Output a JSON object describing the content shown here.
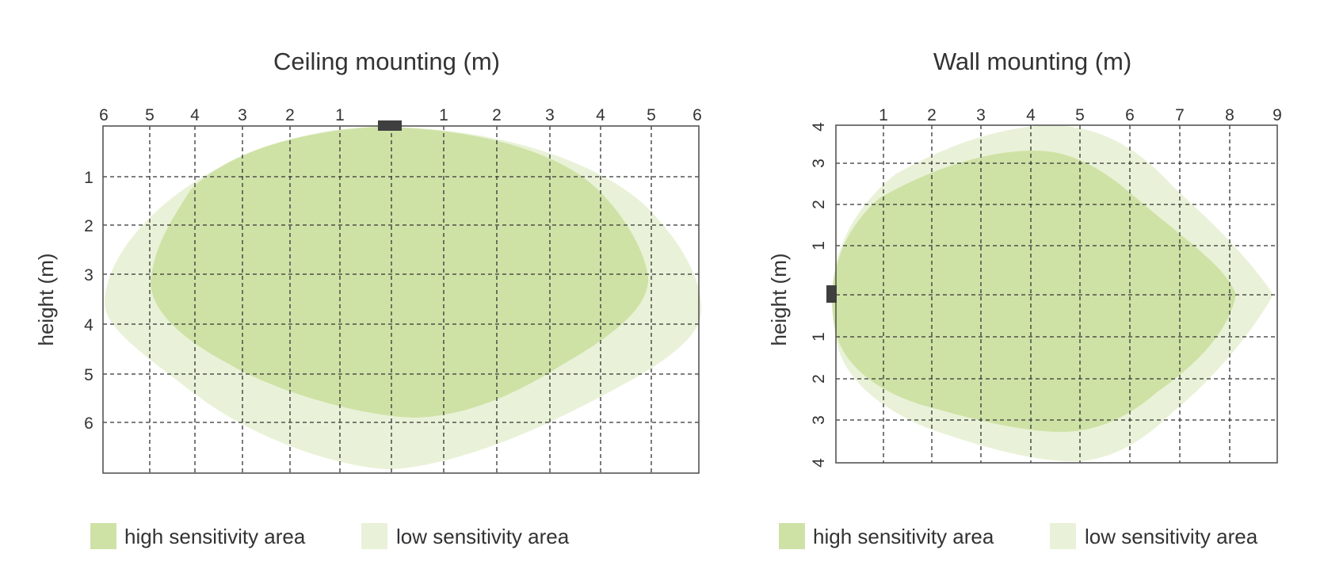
{
  "colors": {
    "high": "#cfe2a6",
    "low": "#e9f2d8",
    "sensor": "#3f3f3f",
    "grid": "#333333",
    "frame": "#555555"
  },
  "panels": [
    {
      "id": "ceiling",
      "title": "Ceiling mounting (m)",
      "x_ticks": [
        "6",
        "5",
        "4",
        "3",
        "2",
        "1",
        "1",
        "2",
        "3",
        "4",
        "5",
        "6"
      ],
      "y_ticks": [
        "1",
        "2",
        "3",
        "4",
        "5",
        "6"
      ],
      "y_axis_label": "height (m)",
      "legend": {
        "high": "high sensitivity area",
        "low": "low sensitivity area"
      }
    },
    {
      "id": "wall",
      "title": "Wall mounting (m)",
      "x_ticks": [
        "1",
        "2",
        "3",
        "4",
        "5",
        "6",
        "7",
        "8",
        "9"
      ],
      "y_ticks": [
        "4",
        "3",
        "2",
        "1",
        "1",
        "2",
        "3",
        "4"
      ],
      "y_axis_label": "height (m)",
      "legend": {
        "high": "high sensitivity area",
        "low": "low sensitivity area"
      }
    }
  ]
}
